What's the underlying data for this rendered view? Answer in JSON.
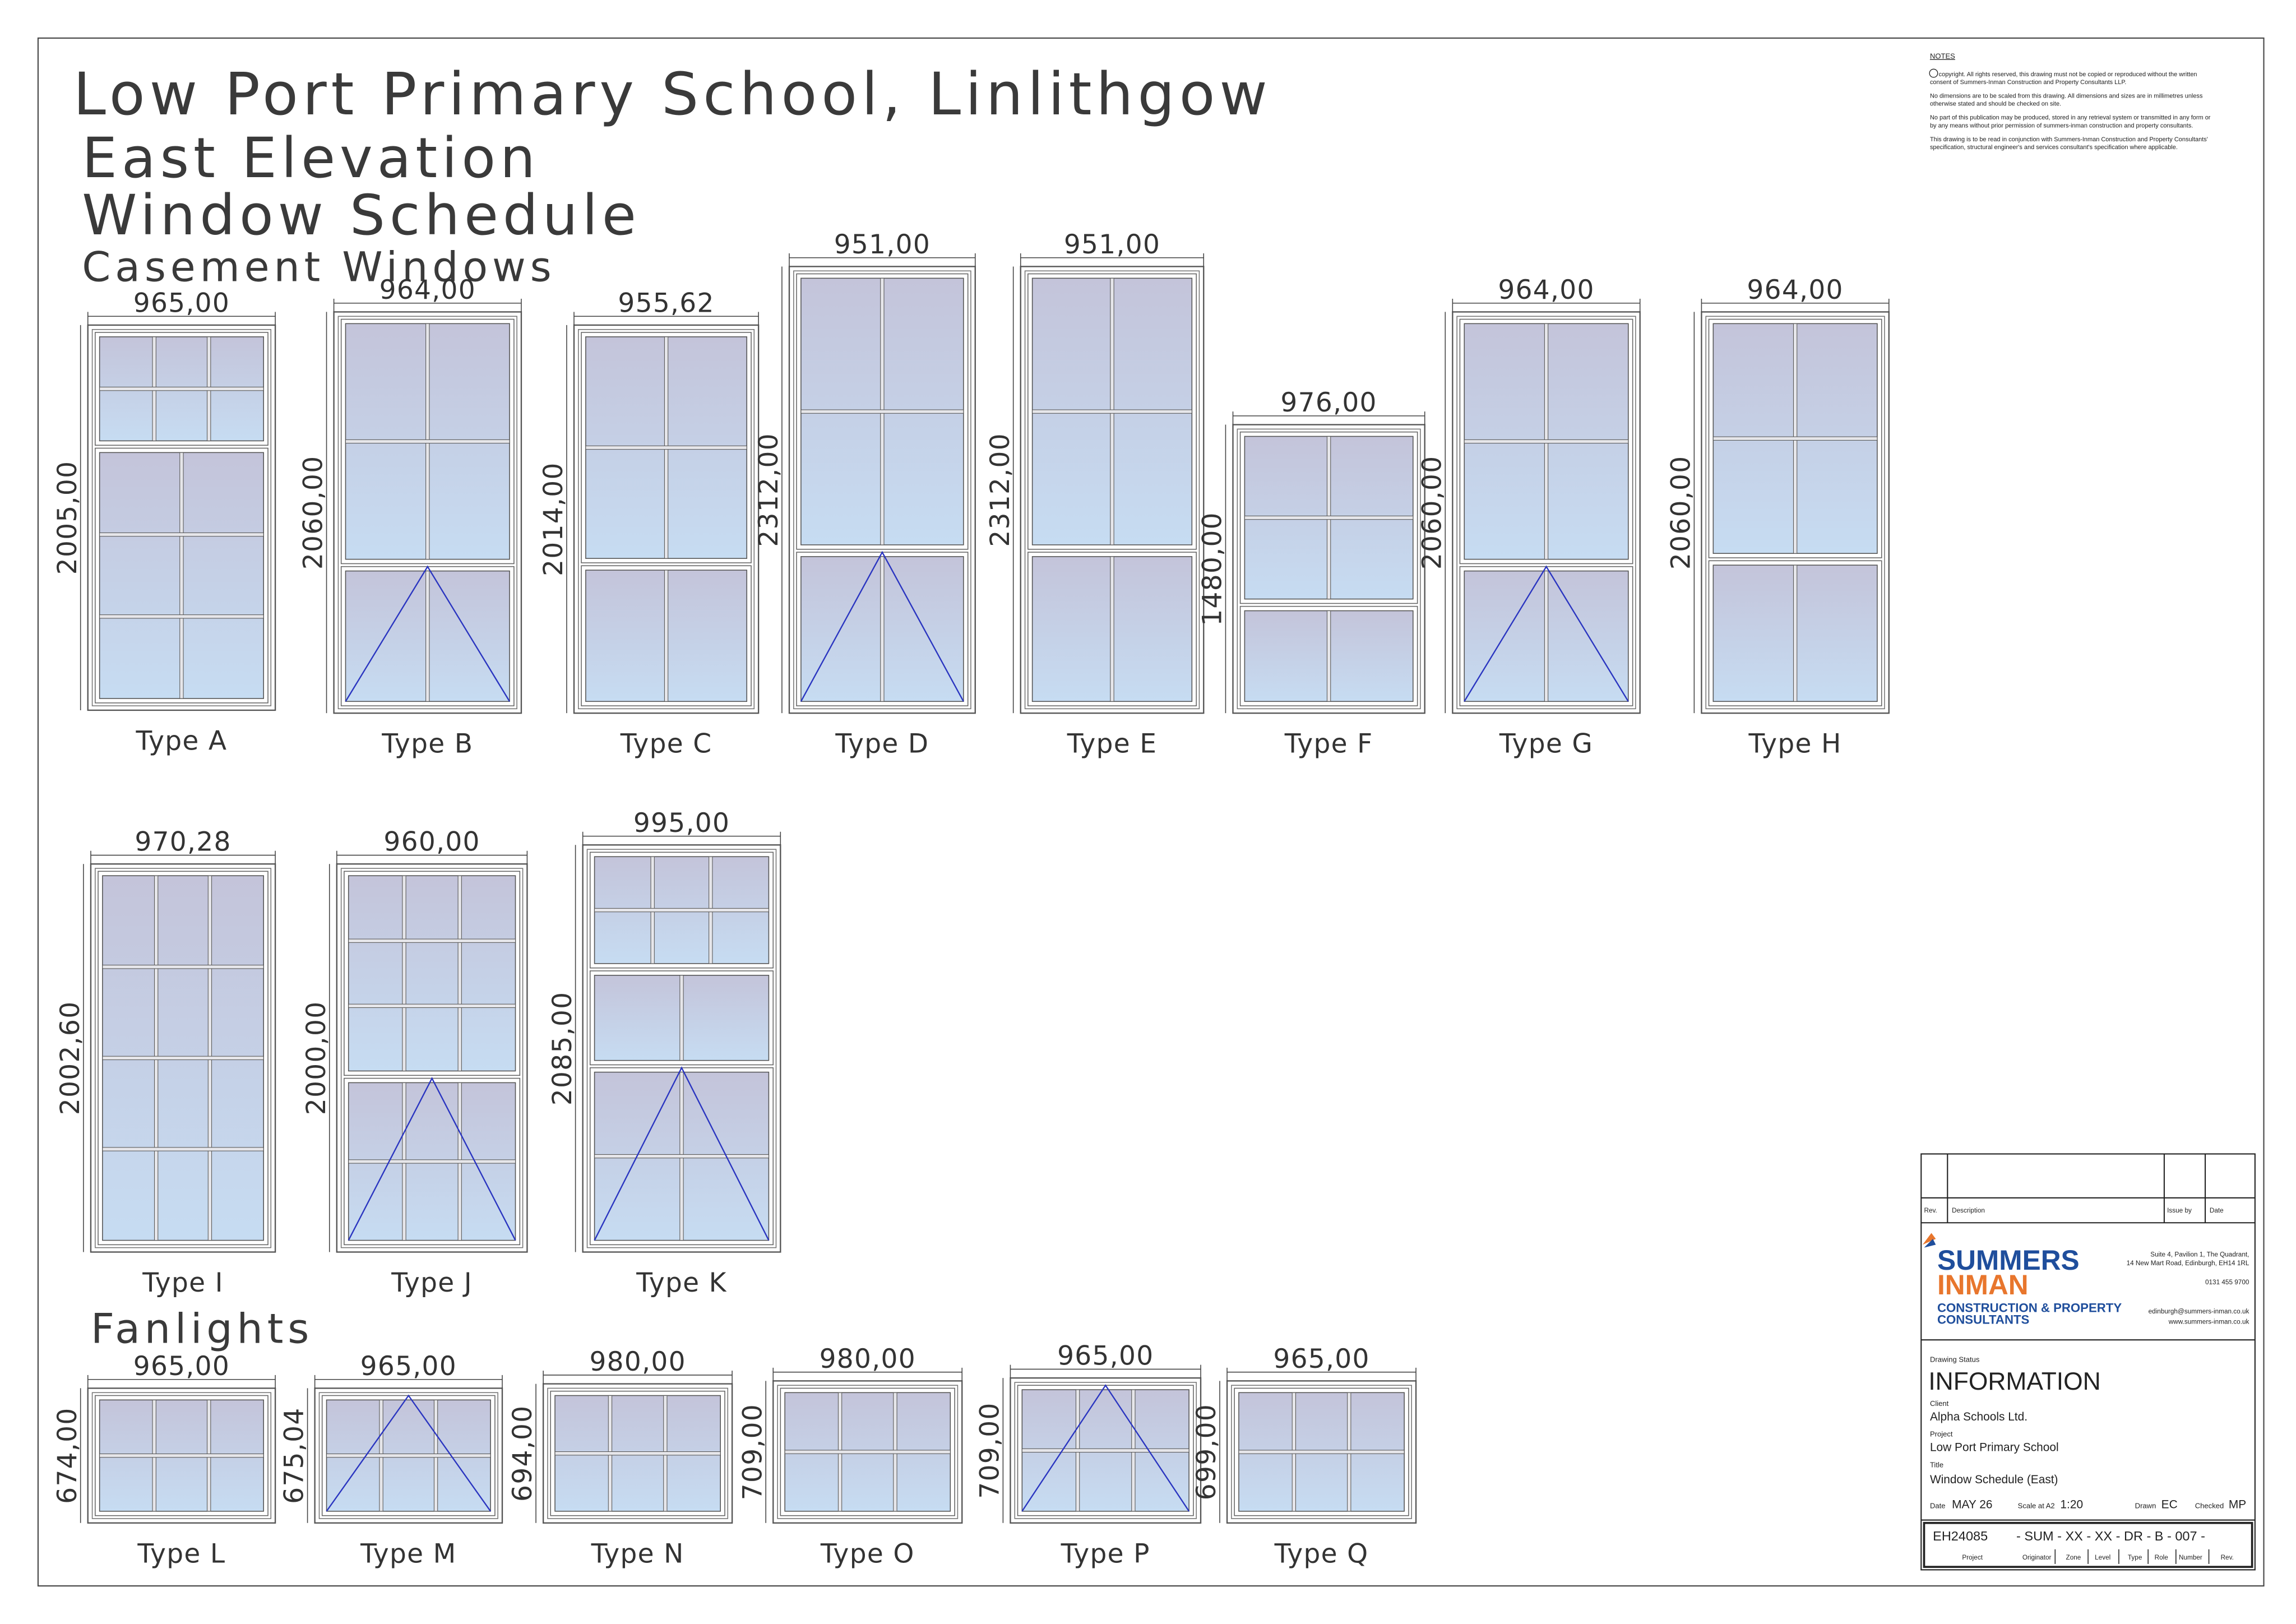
{
  "header": {
    "title": "Low Port Primary School, Linlithgow",
    "elevation": "East Elevation",
    "schedule": "Window Schedule",
    "casement_heading": "Casement Windows",
    "fanlight_heading": "Fanlights"
  },
  "windows": [
    {
      "type": "Type  A",
      "width": "965,00",
      "height": "2005,00"
    },
    {
      "type": "Type  B",
      "width": "964,00",
      "height": "2060,00"
    },
    {
      "type": "Type  C",
      "width": "955,62",
      "height": "2014,00"
    },
    {
      "type": "Type  D",
      "width": "951,00",
      "height": "2312,00"
    },
    {
      "type": "Type  E",
      "width": "951,00",
      "height": "2312,00"
    },
    {
      "type": "Type  F",
      "width": "976,00",
      "height": "1480,00"
    },
    {
      "type": "Type  G",
      "width": "964,00",
      "height": "2060,00"
    },
    {
      "type": "Type  H",
      "width": "964,00",
      "height": "2060,00"
    },
    {
      "type": "Type  I",
      "width": "970,28",
      "height": "2002,60"
    },
    {
      "type": "Type  J",
      "width": "960,00",
      "height": "2000,00"
    },
    {
      "type": "Type  K",
      "width": "995,00",
      "height": "2085,00"
    },
    {
      "type": "Type  L",
      "width": "965,00",
      "height": "674,00"
    },
    {
      "type": "Type  M",
      "width": "965,00",
      "height": "675,04"
    },
    {
      "type": "Type  N",
      "width": "980,00",
      "height": "694,00"
    },
    {
      "type": "Type  O",
      "width": "980,00",
      "height": "709,00"
    },
    {
      "type": "Type  P",
      "width": "965,00",
      "height": "709,00"
    },
    {
      "type": "Type  Q",
      "width": "965,00",
      "height": "699,00"
    }
  ],
  "notes": {
    "heading": "NOTES",
    "paragraphs": [
      [
        "copyright.  All rights reserved, this drawing must not be copied or reproduced without the written",
        "consent of Summers-Inman Construction and Property Consultants LLP."
      ],
      [
        "No dimensions are to be scaled from this drawing. All dimensions and sizes are in millimetres unless",
        "otherwise stated and should be checked on site."
      ],
      [
        "No part of this publication may be produced, stored in any retrieval system or transmitted in any form or",
        "by any means without prior permission of summers-inman construction and property consultants."
      ],
      [
        "This drawing is to be read in conjunction with Summers-Inman Construction and Property Consultants'",
        "specification, structural engineer's and services consultant's specification where applicable."
      ]
    ]
  },
  "revisions": {
    "rev": "Rev.",
    "description": "Description",
    "issue_by": "Issue by",
    "date": "Date"
  },
  "company": {
    "name1": "SUMMERS",
    "name2": "INMAN",
    "tag1": "CONSTRUCTION & PROPERTY",
    "tag2": "CONSULTANTS",
    "address1": "Suite 4, Pavilion 1, The Quadrant,",
    "address2": "14 New Mart Road, Edinburgh, EH14 1RL",
    "phone": "0131 455 9700",
    "email": "edinburgh@summers-inman.co.uk",
    "web": "www.summers-inman.co.uk"
  },
  "title_block": {
    "status_label": "Drawing Status",
    "status": "INFORMATION",
    "client_label": "Client",
    "client": "Alpha Schools Ltd.",
    "project_label": "Project",
    "project": "Low Port Primary School",
    "title_label": "Title",
    "title": "Window Schedule (East)",
    "date_label": "Date",
    "date": "MAY 26",
    "scale_label": "Scale at A2",
    "scale": "1:20",
    "drawn_label": "Drawn",
    "drawn": "EC",
    "checked_label": "Checked",
    "checked": "MP",
    "project_no": "EH24085",
    "drawing_no": "- SUM - XX - XX - DR - B - 007   -",
    "fields": [
      "Project",
      "Originator",
      "Zone",
      "Level",
      "Type",
      "Role",
      "Number",
      "Rev."
    ]
  }
}
